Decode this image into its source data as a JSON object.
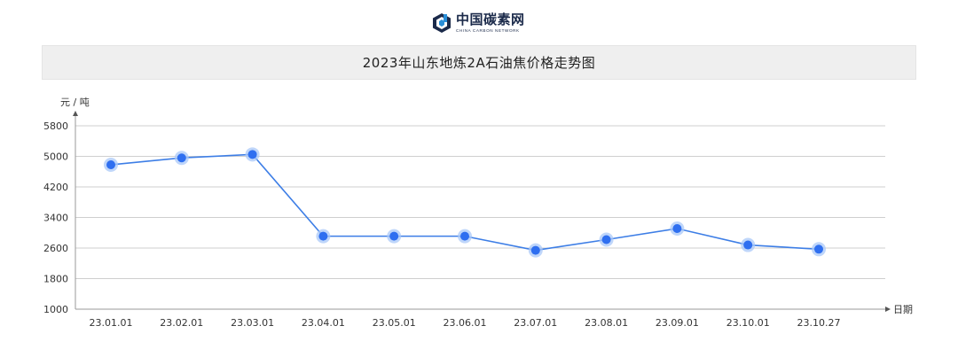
{
  "brand": {
    "name": "中国碳素网",
    "subtitle": "CHINA CARBON NETWORK",
    "icon": "cube-logo-icon",
    "color": "#1b2a4a",
    "accent": "#2a8fd8"
  },
  "colors": {
    "line": "#3d7ee6",
    "marker": "#2f6ff0",
    "marker_halo": "#a9c8f8",
    "grid": "#cfcfcf",
    "axis": "#9a9a9a"
  },
  "chart_data": {
    "type": "line",
    "title": "2023年山东地炼2A石油焦价格走势图",
    "xlabel": "日期",
    "ylabel": "元 / 吨",
    "categories": [
      "23.01.01",
      "23.02.01",
      "23.03.01",
      "23.04.01",
      "23.05.01",
      "23.06.01",
      "23.07.01",
      "23.08.01",
      "23.09.01",
      "23.10.01",
      "23.10.27"
    ],
    "series": [
      {
        "values": [
          4780,
          4960,
          5050,
          2910,
          2910,
          2910,
          2540,
          2820,
          3110,
          2680,
          2570
        ]
      }
    ],
    "ylim": [
      1000,
      5800
    ],
    "yticks": [
      1000,
      1800,
      2600,
      3400,
      4200,
      5000,
      5800
    ],
    "grid": true,
    "legend": "none"
  }
}
